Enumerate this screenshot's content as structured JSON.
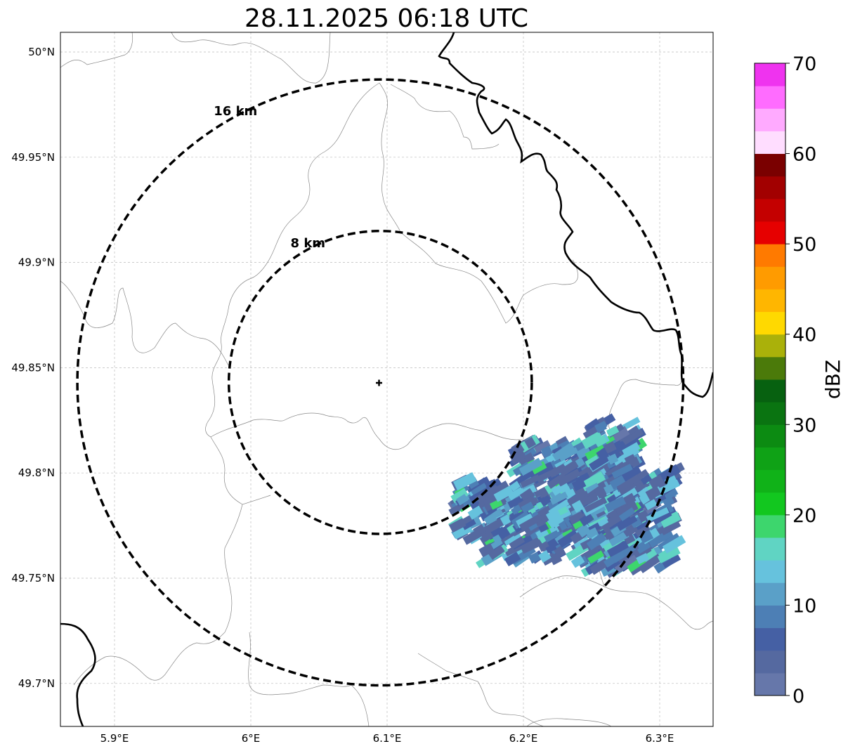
{
  "title": "28.11.2025 06:18 UTC",
  "map": {
    "lon_ticks": [
      "5.9°E",
      "6°E",
      "6.1°E",
      "6.2°E",
      "6.3°E"
    ],
    "lat_ticks": [
      "50°N",
      "49.95°N",
      "49.9°N",
      "49.85°N",
      "49.8°N",
      "49.75°N",
      "49.7°N"
    ],
    "rings": [
      {
        "label": "16 km",
        "radius_km": 16
      },
      {
        "label": "8 km",
        "radius_km": 8
      }
    ],
    "radar_site": {
      "lon": 6.095,
      "lat": 49.843
    }
  },
  "colorbar": {
    "label": "dBZ",
    "ticks": [
      "0",
      "10",
      "20",
      "30",
      "40",
      "50",
      "60",
      "70"
    ],
    "colors": [
      "#6677aa",
      "#5569a0",
      "#4560a4",
      "#4d7fb5",
      "#5aa0c8",
      "#66c2dd",
      "#60d4c3",
      "#3dd66d",
      "#12c71f",
      "#10b218",
      "#0fa216",
      "#0c8b12",
      "#0a7411",
      "#076110",
      "#4b7a0a",
      "#aab10a",
      "#ffd900",
      "#ffb600",
      "#ff9b00",
      "#ff7a00",
      "#e60000",
      "#c40000",
      "#a20000",
      "#7a0000",
      "#ffddff",
      "#ffaaff",
      "#ff6cff",
      "#ef33ef"
    ]
  },
  "colors": {
    "ring": "#000000",
    "border": "#000000",
    "admin_line": "#888888",
    "grid": "#bbbbbb"
  }
}
